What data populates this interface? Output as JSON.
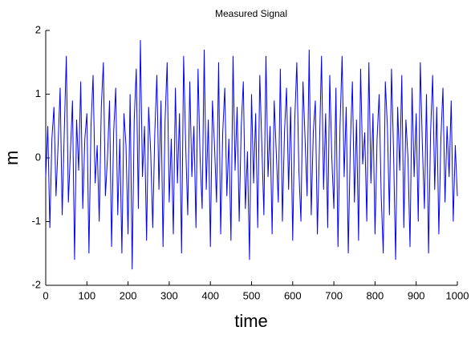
{
  "chart_data": {
    "type": "line",
    "title": "Measured Signal",
    "x_label": "time",
    "y_label": "m",
    "x": [
      0,
      5,
      10,
      15,
      20,
      25,
      30,
      35,
      40,
      45,
      50,
      55,
      60,
      65,
      70,
      75,
      80,
      85,
      90,
      95,
      100,
      105,
      110,
      115,
      120,
      125,
      130,
      135,
      140,
      145,
      150,
      155,
      160,
      165,
      170,
      175,
      180,
      185,
      190,
      195,
      200,
      205,
      210,
      215,
      220,
      225,
      230,
      235,
      240,
      245,
      250,
      255,
      260,
      265,
      270,
      275,
      280,
      285,
      290,
      295,
      300,
      305,
      310,
      315,
      320,
      325,
      330,
      335,
      340,
      345,
      350,
      355,
      360,
      365,
      370,
      375,
      380,
      385,
      390,
      395,
      400,
      405,
      410,
      415,
      420,
      425,
      430,
      435,
      440,
      445,
      450,
      455,
      460,
      465,
      470,
      475,
      480,
      485,
      490,
      495,
      500,
      505,
      510,
      515,
      520,
      525,
      530,
      535,
      540,
      545,
      550,
      555,
      560,
      565,
      570,
      575,
      580,
      585,
      590,
      595,
      600,
      605,
      610,
      615,
      620,
      625,
      630,
      635,
      640,
      645,
      650,
      655,
      660,
      665,
      670,
      675,
      680,
      685,
      690,
      695,
      700,
      705,
      710,
      715,
      720,
      725,
      730,
      735,
      740,
      745,
      750,
      755,
      760,
      765,
      770,
      775,
      780,
      785,
      790,
      795,
      800,
      805,
      810,
      815,
      820,
      825,
      830,
      835,
      840,
      845,
      850,
      855,
      860,
      865,
      870,
      875,
      880,
      885,
      890,
      895,
      900,
      905,
      910,
      915,
      920,
      925,
      930,
      935,
      940,
      945,
      950,
      955,
      960,
      965,
      970,
      975,
      980,
      985,
      990,
      995,
      1000
    ],
    "series": [
      {
        "color": "#0000ff",
        "values": [
          -0.3,
          0.5,
          -1.1,
          0.3,
          0.8,
          -0.6,
          0.2,
          1.1,
          -0.9,
          0.4,
          1.6,
          -0.7,
          0.1,
          0.9,
          -1.6,
          0.6,
          -0.2,
          1.2,
          -0.8,
          0.3,
          0.7,
          -1.5,
          0.5,
          1.3,
          -0.4,
          0.2,
          -1.0,
          0.8,
          1.5,
          -0.6,
          0.0,
          0.9,
          -1.4,
          0.4,
          1.1,
          -0.9,
          0.3,
          -1.5,
          0.7,
          0.2,
          -1.2,
          1.0,
          -1.75,
          0.6,
          1.4,
          -0.8,
          1.85,
          -0.3,
          0.5,
          -1.3,
          0.8,
          0.1,
          -1.1,
          0.4,
          1.3,
          -0.5,
          0.9,
          -1.4,
          0.6,
          1.5,
          -0.7,
          0.3,
          -1.2,
          1.1,
          -0.4,
          0.7,
          -1.5,
          1.6,
          0.2,
          -0.9,
          1.2,
          -0.3,
          0.5,
          -1.1,
          1.4,
          0.0,
          -0.8,
          1.7,
          -0.5,
          0.6,
          -1.4,
          0.9,
          0.2,
          -0.7,
          1.5,
          -1.2,
          0.4,
          1.1,
          -0.6,
          0.3,
          -1.3,
          1.6,
          -0.2,
          0.8,
          -1.0,
          0.5,
          1.2,
          -0.8,
          0.1,
          -1.6,
          1.0,
          -0.4,
          0.7,
          -1.1,
          1.3,
          0.2,
          -0.9,
          1.6,
          -0.3,
          0.5,
          -1.2,
          0.9,
          0.1,
          -0.7,
          1.4,
          -1.0,
          0.4,
          1.1,
          -0.5,
          0.8,
          -1.3,
          0.6,
          1.5,
          -0.2,
          -1.0,
          1.2,
          0.3,
          -0.6,
          1.7,
          -0.9,
          0.4,
          0.9,
          -1.2,
          0.2,
          1.6,
          -0.5,
          0.7,
          -1.1,
          1.3,
          0.0,
          -0.8,
          1.1,
          -1.4,
          0.5,
          1.6,
          -0.3,
          0.8,
          -1.5,
          0.2,
          1.2,
          -0.7,
          0.6,
          -1.3,
          1.4,
          -0.1,
          0.4,
          -1.0,
          1.5,
          -0.4,
          0.7,
          -1.2,
          0.3,
          1.0,
          -0.6,
          -1.5,
          1.2,
          0.5,
          -0.9,
          1.4,
          0.1,
          -1.6,
          0.8,
          -0.2,
          1.3,
          -1.1,
          0.6,
          0.0,
          -1.4,
          1.1,
          -0.3,
          0.7,
          -1.0,
          1.5,
          0.2,
          -0.8,
          1.0,
          -1.5,
          0.4,
          1.3,
          -0.5,
          0.8,
          -1.2,
          0.3,
          1.1,
          -0.7,
          0.5,
          -0.3,
          0.9,
          -1.0,
          0.2,
          -0.6
        ]
      }
    ],
    "xlim": [
      0,
      1000
    ],
    "xticks": [
      0,
      100,
      200,
      300,
      400,
      500,
      600,
      700,
      800,
      900,
      1000
    ],
    "ylim": [
      -2,
      2
    ],
    "yticks": [
      -2,
      -1,
      0,
      1,
      2
    ]
  }
}
